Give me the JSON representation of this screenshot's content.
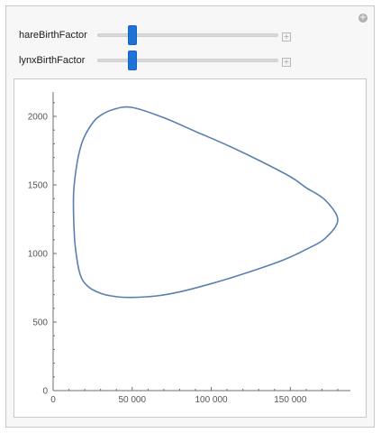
{
  "controls": [
    {
      "label": "hareBirthFactor",
      "value_fraction": 0.18
    },
    {
      "label": "lynxBirthFactor",
      "value_fraction": 0.18
    }
  ],
  "icons": {
    "panel_expand": "plus-circle-icon",
    "slider_expand": "plus-square-icon"
  },
  "colors": {
    "curve": "#5a7fb0",
    "slider_thumb": "#1e73d8",
    "axis": "#6e6e6e"
  },
  "chart_data": {
    "type": "line",
    "title": "",
    "xlabel": "",
    "ylabel": "",
    "xlim": [
      0,
      185000
    ],
    "ylim": [
      0,
      2200
    ],
    "x_ticks": [
      0,
      50000,
      100000,
      150000
    ],
    "x_tick_labels": [
      "0",
      "50 000",
      "100 000",
      "150 000"
    ],
    "y_ticks": [
      0,
      500,
      1000,
      1500,
      2000
    ],
    "y_tick_labels": [
      "0",
      "500",
      "1000",
      "1500",
      "2000"
    ],
    "grid": false,
    "series": [
      {
        "x": [
          180000,
          172000,
          160000,
          150000,
          130000,
          110000,
          90000,
          70000,
          50000,
          38000,
          28000,
          22000,
          18000,
          15000,
          13000,
          13000,
          14000,
          17000,
          22000,
          30000,
          40000,
          50000,
          65000,
          80000,
          100000,
          120000,
          145000,
          160000,
          172000,
          180000
        ],
        "y": [
          1245,
          1390,
          1480,
          1560,
          1680,
          1790,
          1890,
          1990,
          2065,
          2050,
          1990,
          1900,
          1800,
          1650,
          1450,
          1250,
          1050,
          850,
          760,
          710,
          685,
          680,
          690,
          720,
          780,
          850,
          950,
          1030,
          1110,
          1245
        ]
      }
    ]
  }
}
